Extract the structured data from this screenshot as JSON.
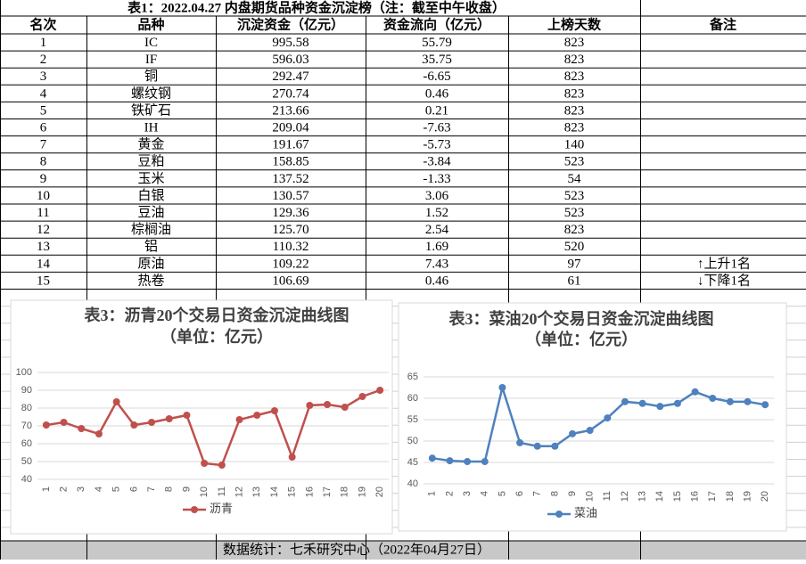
{
  "table": {
    "title": "表1：2022.04.27 内盘期货品种资金沉淀榜（注：截至中午收盘）",
    "header": [
      "名次",
      "品种",
      "沉淀资金（亿元）",
      "资金流向（亿元）",
      "上榜天数",
      "备注"
    ],
    "rows": [
      [
        "1",
        "IC",
        "995.58",
        "55.79",
        "823"
      ],
      [
        "2",
        "IF",
        "596.03",
        "35.75",
        "823"
      ],
      [
        "3",
        "铜",
        "292.47",
        "-6.65",
        "823"
      ],
      [
        "4",
        "螺纹钢",
        "270.74",
        "0.46",
        "823"
      ],
      [
        "5",
        "铁矿石",
        "213.66",
        "0.21",
        "823"
      ],
      [
        "6",
        "IH",
        "209.04",
        "-7.63",
        "823"
      ],
      [
        "7",
        "黄金",
        "191.67",
        "-5.73",
        "140"
      ],
      [
        "8",
        "豆粕",
        "158.85",
        "-3.84",
        "523"
      ],
      [
        "9",
        "玉米",
        "137.52",
        "-1.33",
        "54"
      ],
      [
        "10",
        "白银",
        "130.57",
        "3.06",
        "523"
      ],
      [
        "11",
        "豆油",
        "129.36",
        "1.52",
        "523"
      ],
      [
        "12",
        "棕榈油",
        "125.70",
        "2.54",
        "823"
      ],
      [
        "13",
        "铝",
        "110.32",
        "1.69",
        "520"
      ],
      [
        "14",
        "原油",
        "109.22",
        "7.43",
        "97",
        "↑上升1名"
      ],
      [
        "15",
        "热卷",
        "106.69",
        "0.46",
        "61",
        "↓下降1名"
      ]
    ],
    "footer": "数据统计：七禾研究中心（2022年04月27日）"
  },
  "chart_data": [
    {
      "type": "line",
      "title": "表3：沥青20个交易日资金沉淀曲线图",
      "subtitle": "（单位：亿元）",
      "categories": [
        1,
        2,
        3,
        4,
        5,
        6,
        7,
        8,
        9,
        10,
        11,
        12,
        13,
        14,
        15,
        16,
        17,
        18,
        19,
        20
      ],
      "series": [
        {
          "name": "沥青",
          "color": "#c0504d",
          "values": [
            70.5,
            72,
            68.5,
            65.5,
            83.5,
            70.5,
            72,
            74,
            76,
            49,
            48,
            73.5,
            76,
            78.5,
            52.5,
            81.5,
            82,
            80.5,
            86.5,
            90
          ]
        }
      ],
      "ylim": [
        40,
        100
      ],
      "yticks": [
        40,
        50,
        60,
        70,
        80,
        90,
        100
      ],
      "grid": true,
      "legend": "bottom"
    },
    {
      "type": "line",
      "title": "表3：菜油20个交易日资金沉淀曲线图",
      "subtitle": "（单位：亿元）",
      "categories": [
        1,
        2,
        3,
        4,
        5,
        6,
        7,
        8,
        9,
        10,
        11,
        12,
        13,
        14,
        15,
        16,
        17,
        18,
        19,
        20
      ],
      "series": [
        {
          "name": "菜油",
          "color": "#4f81bd",
          "values": [
            46.0,
            45.4,
            45.2,
            45.2,
            62.5,
            49.6,
            48.8,
            48.8,
            51.7,
            52.5,
            55.4,
            59.2,
            58.8,
            58.1,
            58.8,
            61.5,
            60.0,
            59.2,
            59.2,
            58.5
          ]
        }
      ],
      "ylim": [
        40,
        65
      ],
      "yticks": [
        40,
        45,
        50,
        55,
        60,
        65
      ],
      "grid": true,
      "legend": "bottom"
    }
  ]
}
